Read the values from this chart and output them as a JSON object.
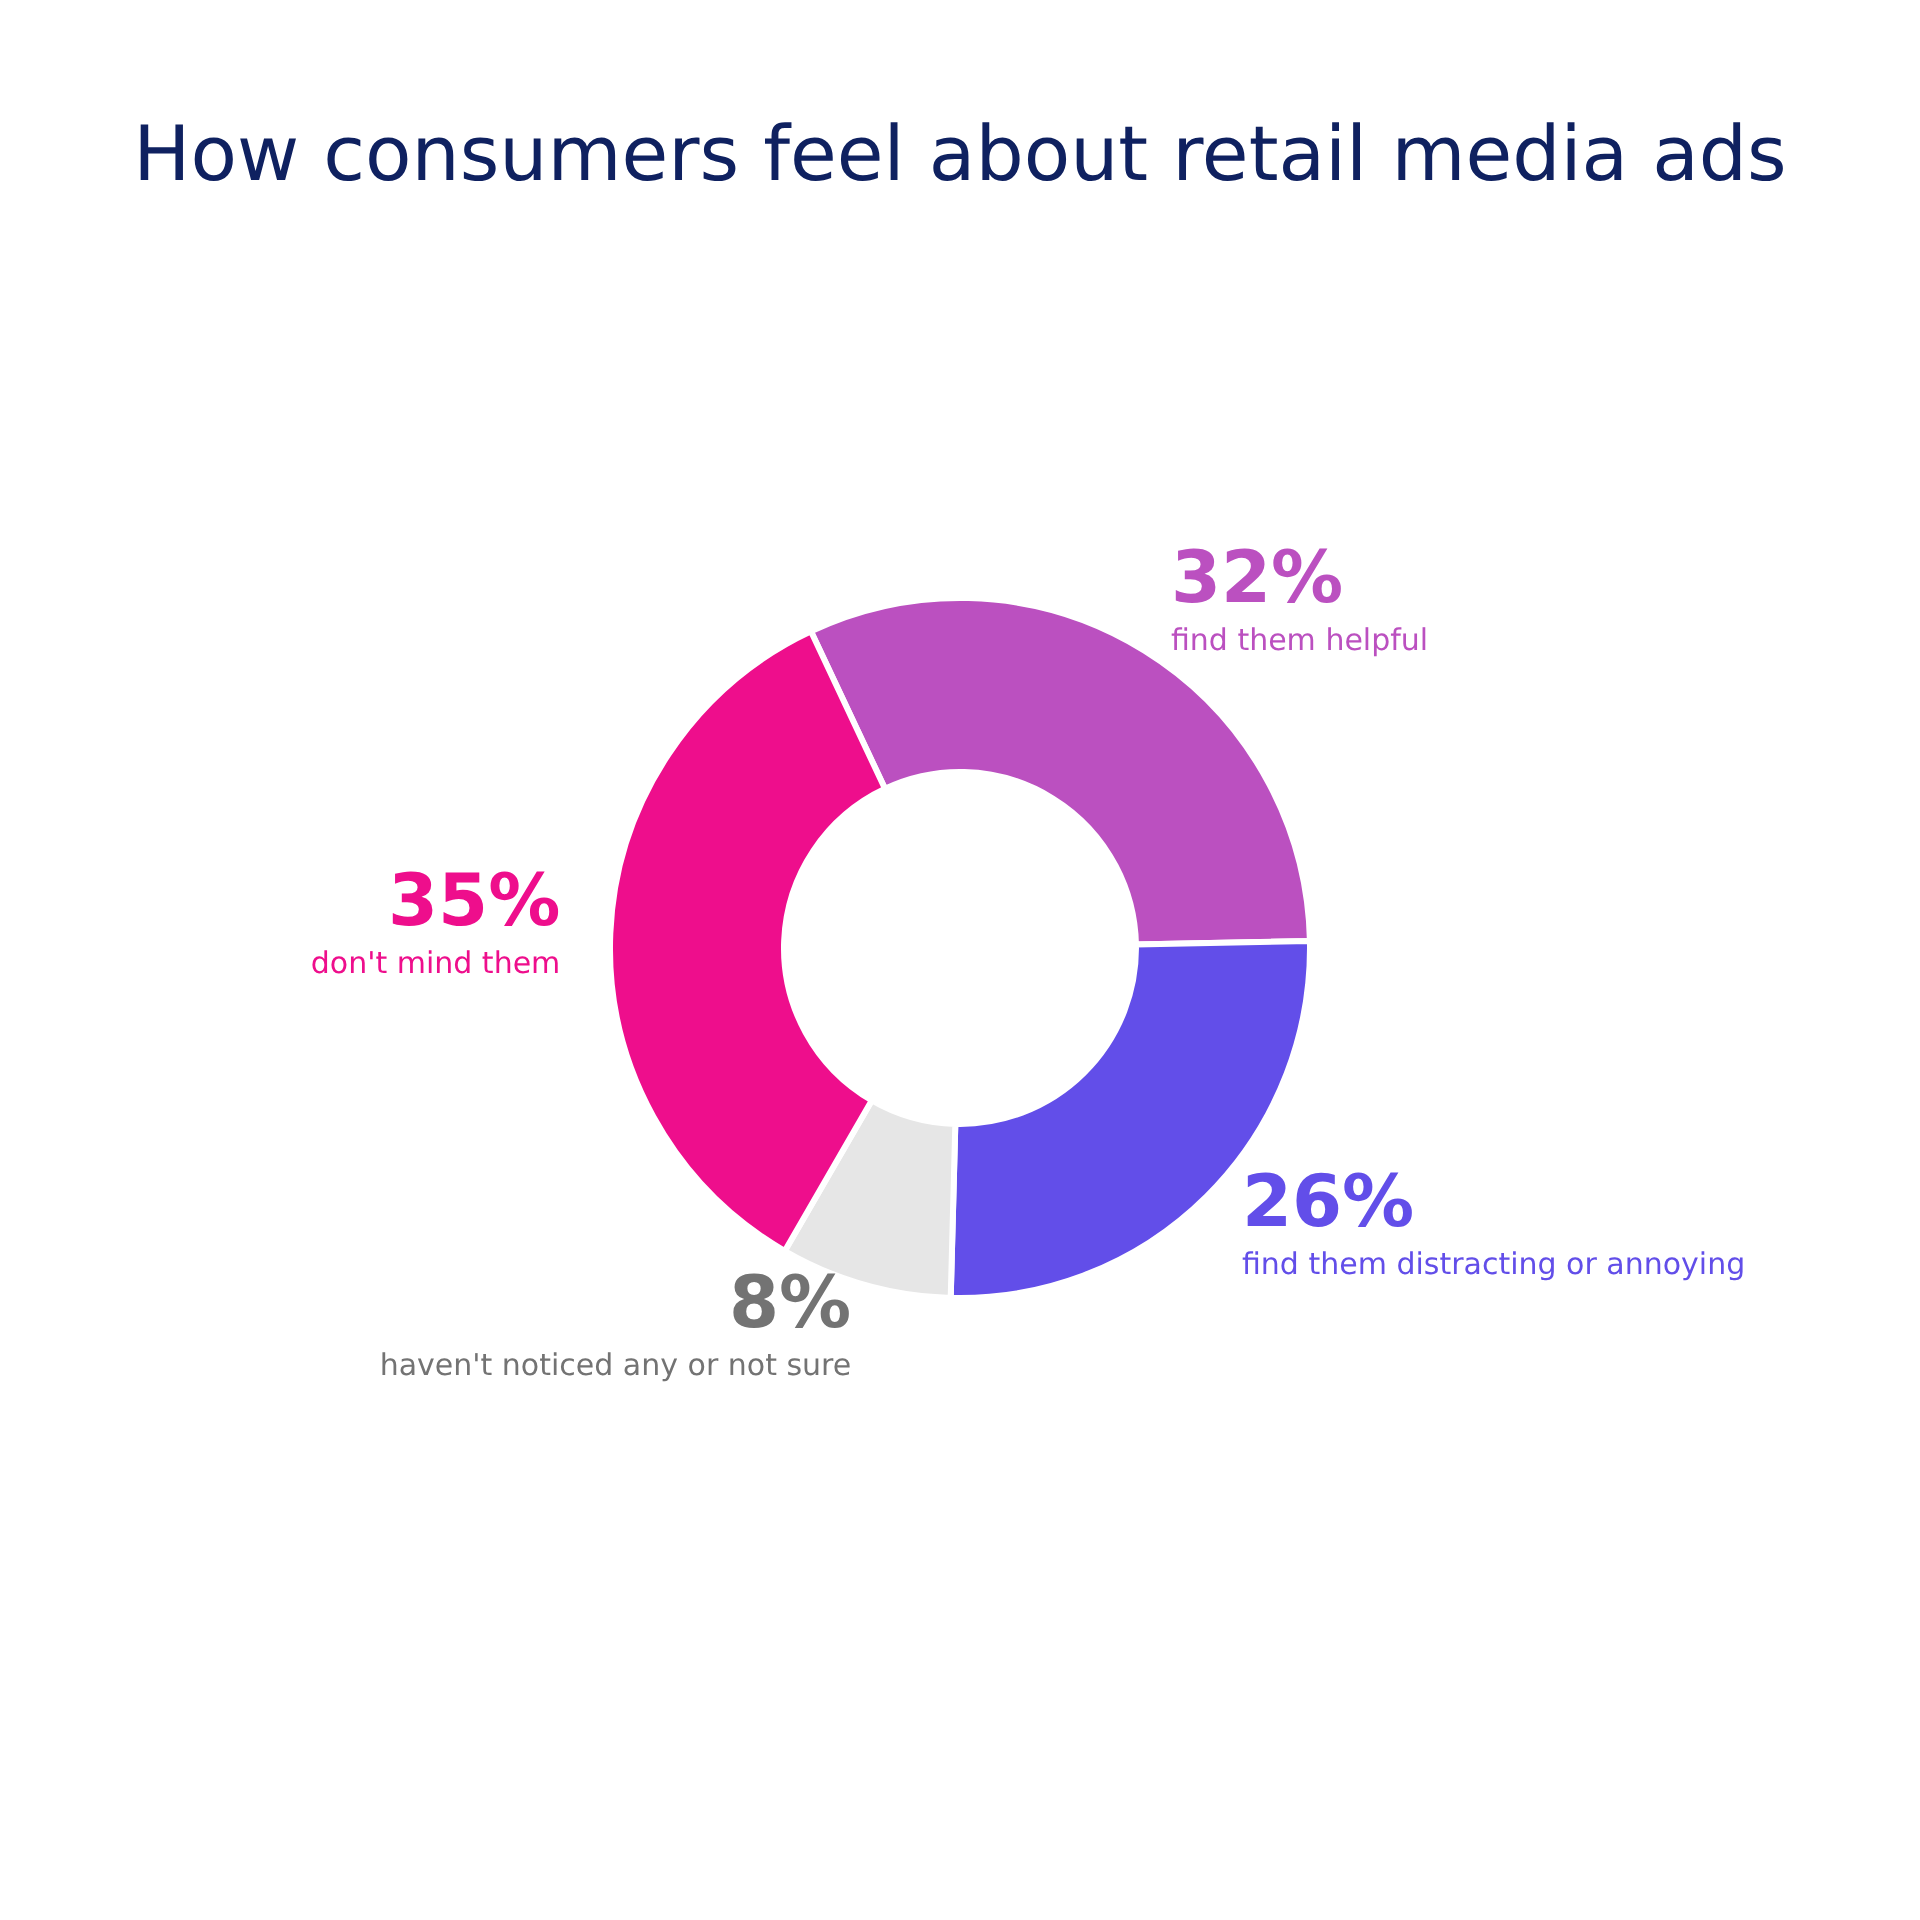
{
  "chart_data": {
    "type": "donut",
    "title": "How consumers feel about retail media ads",
    "categories": [
      "find them helpful",
      "find them distracting or annoying",
      "haven't noticed any or not sure",
      "don't mind them"
    ],
    "values": [
      32,
      26,
      8,
      35
    ],
    "colors": [
      "#bb50c0",
      "#624ee9",
      "#e6e6e6",
      "#ee0e8c"
    ],
    "value_labels": [
      "32%",
      "26%",
      "8%",
      "35%"
    ],
    "legend": false
  }
}
